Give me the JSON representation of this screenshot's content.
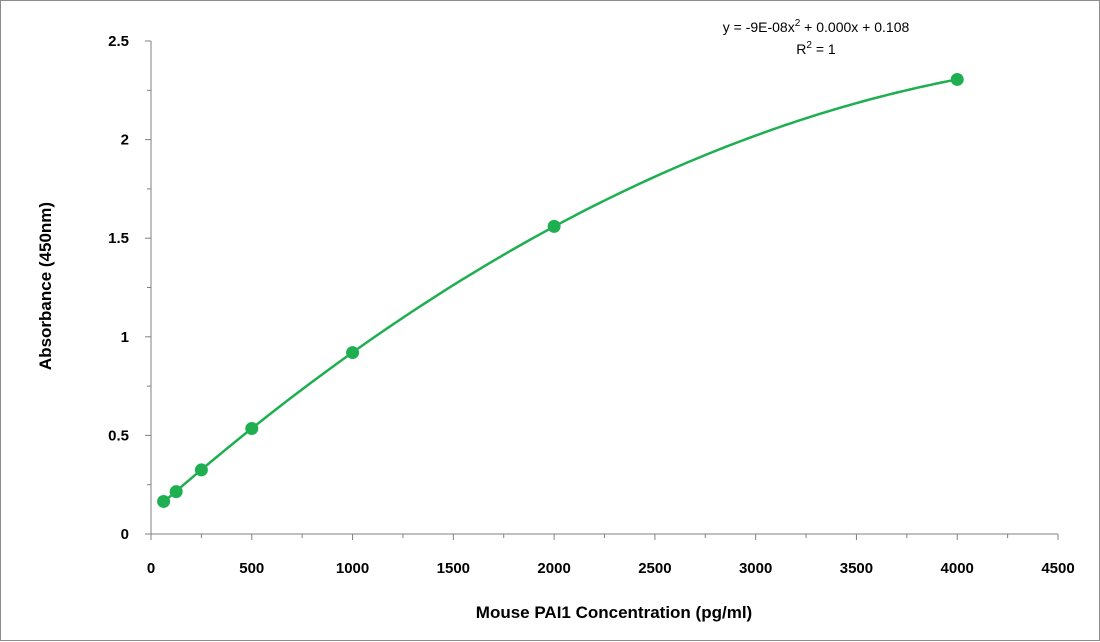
{
  "chart_data": {
    "type": "scatter",
    "title": "",
    "xlabel": "Mouse PAI1 Concentration (pg/ml)",
    "ylabel": "Absorbance (450nm)",
    "xlim": [
      0,
      4500
    ],
    "ylim": [
      0,
      2.5
    ],
    "xticks": [
      "0",
      "500",
      "1000",
      "1500",
      "2000",
      "2500",
      "3000",
      "3500",
      "4000",
      "4500"
    ],
    "yticks": [
      "0",
      "0.5",
      "1",
      "1.5",
      "2",
      "2.5"
    ],
    "grid": false,
    "legend": "none",
    "series": [
      {
        "points": [
          {
            "x": 62.5,
            "y": 0.165
          },
          {
            "x": 125,
            "y": 0.215
          },
          {
            "x": 250,
            "y": 0.325
          },
          {
            "x": 500,
            "y": 0.535
          },
          {
            "x": 1000,
            "y": 0.92
          },
          {
            "x": 2000,
            "y": 1.56
          },
          {
            "x": 4000,
            "y": 2.305
          }
        ],
        "color": "#1eaf50",
        "trendline": "polynomial order 2"
      }
    ],
    "annotations": {
      "equation": {
        "prefix": "y = -9E-08x",
        "exp": "2",
        "suffix": " + 0.000x + 0.108"
      },
      "r_squared": {
        "prefix": "R",
        "exp": "2",
        "suffix": " = 1"
      }
    }
  }
}
